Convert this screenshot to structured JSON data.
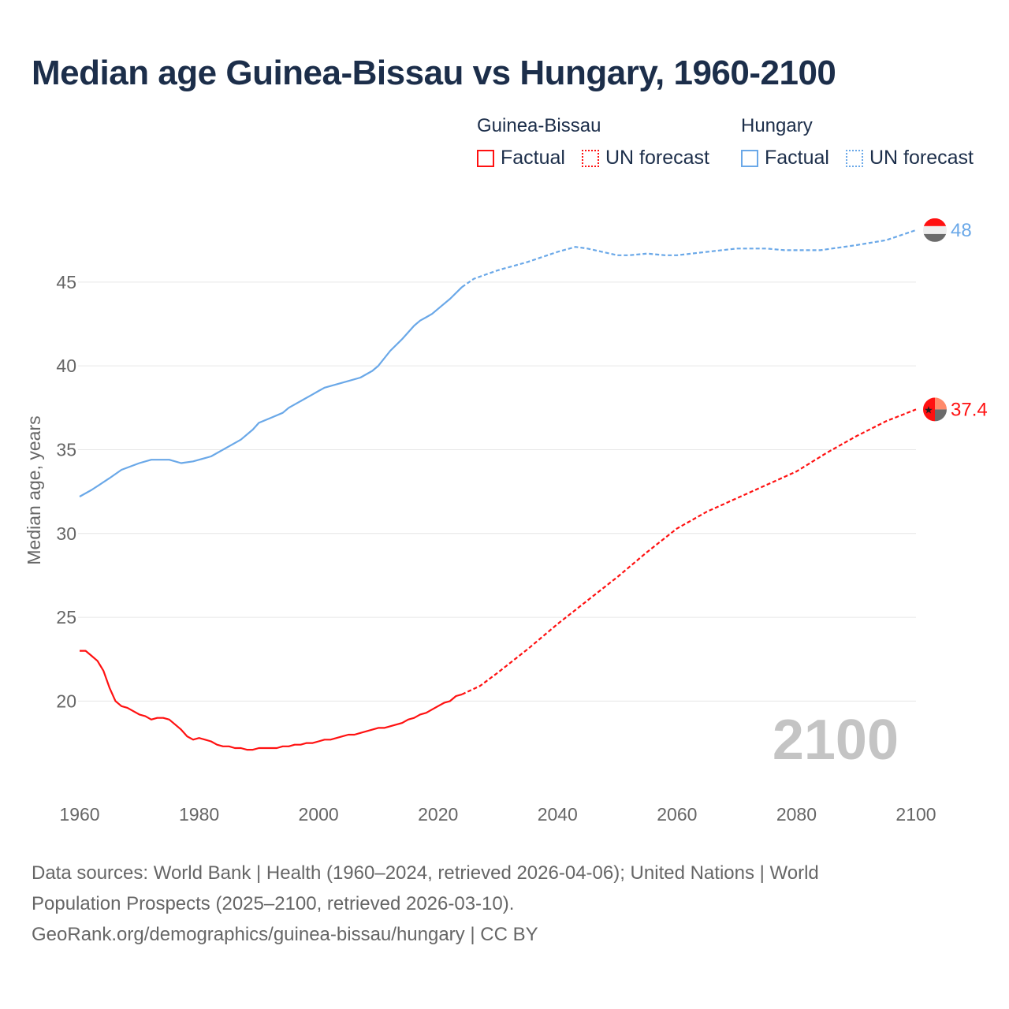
{
  "title": "Median age Guinea-Bissau vs Hungary, 1960-2100",
  "legend": {
    "groups": [
      {
        "name": "Guinea-Bissau",
        "color": "#ff1111",
        "factual": "Factual",
        "forecast": "UN forecast"
      },
      {
        "name": "Hungary",
        "color": "#6aa8e8",
        "factual": "Factual",
        "forecast": "UN forecast"
      }
    ]
  },
  "year_marker": "2100",
  "footer": {
    "line1": "Data sources: World Bank | Health (1960–2024, retrieved 2026-04-06); United Nations | World",
    "line2": "Population Prospects (2025–2100, retrieved 2026-03-10).",
    "line3": "GeoRank.org/demographics/guinea-bissau/hungary | CC BY"
  },
  "chart_data": {
    "type": "line",
    "title": "Median age Guinea-Bissau vs Hungary, 1960-2100",
    "xlabel": "",
    "ylabel": "Median age, years",
    "xlim": [
      1960,
      2100
    ],
    "ylim": [
      14.8,
      49.6
    ],
    "xticks": [
      "1960",
      "1980",
      "2000",
      "2020",
      "2040",
      "2060",
      "2080",
      "2100"
    ],
    "yticks": [
      "20",
      "25",
      "30",
      "35",
      "40",
      "45"
    ],
    "grid": true,
    "legend_position": "top-right",
    "series": [
      {
        "name": "Guinea-Bissau",
        "kind": "Factual",
        "color": "#ff1111",
        "dashed": false,
        "x": [
          1960,
          1961,
          1962,
          1963,
          1964,
          1965,
          1966,
          1967,
          1968,
          1969,
          1970,
          1971,
          1972,
          1973,
          1974,
          1975,
          1976,
          1977,
          1978,
          1979,
          1980,
          1981,
          1982,
          1983,
          1984,
          1985,
          1986,
          1987,
          1988,
          1989,
          1990,
          1991,
          1992,
          1993,
          1994,
          1995,
          1996,
          1997,
          1998,
          1999,
          2000,
          2001,
          2002,
          2003,
          2004,
          2005,
          2006,
          2007,
          2008,
          2009,
          2010,
          2011,
          2012,
          2013,
          2014,
          2015,
          2016,
          2017,
          2018,
          2019,
          2020,
          2021,
          2022,
          2023,
          2024
        ],
        "y": [
          23.0,
          23.0,
          22.7,
          22.4,
          21.8,
          20.8,
          20.0,
          19.7,
          19.6,
          19.4,
          19.2,
          19.1,
          18.9,
          19.0,
          19.0,
          18.9,
          18.6,
          18.3,
          17.9,
          17.7,
          17.8,
          17.7,
          17.6,
          17.4,
          17.3,
          17.3,
          17.2,
          17.2,
          17.1,
          17.1,
          17.2,
          17.2,
          17.2,
          17.2,
          17.3,
          17.3,
          17.4,
          17.4,
          17.5,
          17.5,
          17.6,
          17.7,
          17.7,
          17.8,
          17.9,
          18.0,
          18.0,
          18.1,
          18.2,
          18.3,
          18.4,
          18.4,
          18.5,
          18.6,
          18.7,
          18.9,
          19.0,
          19.2,
          19.3,
          19.5,
          19.7,
          19.9,
          20.0,
          20.3,
          20.4
        ]
      },
      {
        "name": "Guinea-Bissau",
        "kind": "UN forecast",
        "color": "#ff1111",
        "dashed": true,
        "x": [
          2024,
          2027,
          2030,
          2035,
          2040,
          2045,
          2050,
          2055,
          2060,
          2065,
          2070,
          2075,
          2080,
          2085,
          2090,
          2095,
          2100
        ],
        "y": [
          20.4,
          20.9,
          21.7,
          23.1,
          24.6,
          26.0,
          27.4,
          28.9,
          30.3,
          31.3,
          32.1,
          32.9,
          33.7,
          34.8,
          35.8,
          36.7,
          37.4
        ]
      },
      {
        "name": "Hungary",
        "kind": "Factual",
        "color": "#6aa8e8",
        "dashed": false,
        "x": [
          1960,
          1962,
          1965,
          1967,
          1970,
          1972,
          1975,
          1977,
          1979,
          1980,
          1982,
          1985,
          1987,
          1989,
          1990,
          1992,
          1994,
          1995,
          1999,
          2000,
          2001,
          2005,
          2007,
          2009,
          2010,
          2012,
          2014,
          2016,
          2017,
          2018,
          2019,
          2020,
          2022,
          2024
        ],
        "y": [
          32.2,
          32.6,
          33.3,
          33.8,
          34.2,
          34.4,
          34.4,
          34.2,
          34.3,
          34.4,
          34.6,
          35.2,
          35.6,
          36.2,
          36.6,
          36.9,
          37.2,
          37.5,
          38.3,
          38.5,
          38.7,
          39.1,
          39.3,
          39.7,
          40.0,
          40.9,
          41.6,
          42.4,
          42.7,
          42.9,
          43.1,
          43.4,
          44.0,
          44.7
        ]
      },
      {
        "name": "Hungary",
        "kind": "UN forecast",
        "color": "#6aa8e8",
        "dashed": true,
        "x": [
          2024,
          2026,
          2030,
          2035,
          2040,
          2043,
          2045,
          2050,
          2052,
          2055,
          2058,
          2060,
          2065,
          2070,
          2075,
          2078,
          2084,
          2090,
          2095,
          2100
        ],
        "y": [
          44.7,
          45.2,
          45.7,
          46.2,
          46.8,
          47.1,
          47.0,
          46.6,
          46.6,
          46.7,
          46.6,
          46.6,
          46.8,
          47.0,
          47.0,
          46.9,
          46.9,
          47.2,
          47.5,
          48.1
        ]
      }
    ],
    "end_labels": [
      {
        "series": "Hungary",
        "text": "48",
        "value": 48.1
      },
      {
        "series": "Guinea-Bissau",
        "text": "37.4",
        "value": 37.4
      }
    ]
  }
}
